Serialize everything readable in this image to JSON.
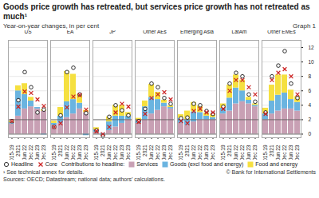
{
  "chart_data": {
    "type": "bar",
    "stacked": true,
    "title": "Goods price growth has retreated, but services price growth has not retreated as much¹",
    "subtitle": "Year-on-year changes, in per cent",
    "graph_label": "Graph 1",
    "footnote": "¹ See technical annex for details.",
    "source": "Sources: OECD; Datastream; national data; authors’ calculations.",
    "copyright": "© Bank for International Settlements",
    "legend_note": "Contributions to headline:",
    "legend": "bottom",
    "grid": true,
    "ylim": [
      -0.5,
      13.0
    ],
    "yticks": [
      0,
      2,
      4,
      6,
      8,
      10,
      12
    ],
    "reference_lines": [
      2,
      0
    ],
    "groups": [
      {
        "name": "US",
        "categories": [
          "2015-19",
          "2021",
          "Jun 22",
          "Dec 22",
          "Jun 23",
          "Dec 23"
        ]
      },
      {
        "name": "EA",
        "categories": [
          "2015-19",
          "2021",
          "Jun 22",
          "Dec 22",
          "Jun 23",
          "Dec 23"
        ]
      },
      {
        "name": "JP",
        "categories": [
          "2015-19",
          "2021",
          "Jun 22",
          "Dec 22",
          "Jun 23",
          "Dec 23"
        ]
      },
      {
        "name": "Other AEs",
        "categories": [
          "2015-19",
          "2021",
          "Jun 22",
          "Dec 22",
          "Jun 23",
          "Dec 23"
        ]
      },
      {
        "name": "Emerging Asia",
        "categories": [
          "2015-19",
          "2021",
          "Jun 22",
          "Dec 22",
          "Jun 23",
          "Dec 23"
        ]
      },
      {
        "name": "LatAm",
        "categories": [
          "2015-19",
          "2021",
          "Jun 22",
          "Dec 22",
          "Jun 23",
          "Dec 23"
        ]
      },
      {
        "name": "Other EMEs",
        "categories": [
          "2015-19",
          "2021",
          "Jun 22",
          "Dec 22",
          "Jun 23",
          "Dec 23"
        ]
      }
    ],
    "series": [
      {
        "name": "Headline",
        "type": "scatter",
        "marker": "circle",
        "color": "#000000",
        "values": [
          1.8,
          4.7,
          8.6,
          6.5,
          3.0,
          3.4,
          1.0,
          2.6,
          8.6,
          9.2,
          5.5,
          2.9,
          0.5,
          -0.2,
          2.4,
          4.0,
          3.3,
          2.6,
          1.8,
          3.5,
          7.0,
          6.5,
          5.0,
          4.2,
          2.2,
          2.3,
          4.2,
          4.0,
          3.2,
          2.8,
          3.8,
          7.0,
          8.5,
          8.0,
          5.5,
          4.5,
          3.0,
          8.0,
          9.5,
          11.5,
          7.0,
          5.0
        ]
      },
      {
        "name": "Core",
        "type": "scatter",
        "marker": "x",
        "color": "#cc2222",
        "values": [
          1.8,
          3.8,
          5.9,
          5.7,
          4.8,
          3.9,
          1.0,
          1.5,
          3.7,
          5.2,
          5.4,
          3.4,
          0.4,
          0.0,
          1.0,
          3.0,
          4.2,
          3.8,
          1.7,
          2.8,
          5.0,
          5.5,
          5.8,
          4.8,
          1.8,
          1.5,
          3.2,
          3.5,
          3.0,
          3.0,
          3.5,
          6.0,
          7.5,
          7.5,
          6.5,
          5.5,
          2.8,
          7.5,
          8.5,
          9.0,
          8.0,
          5.5
        ]
      },
      {
        "name": "Services",
        "type": "bar",
        "color": "#c8a0b4",
        "values": [
          1.4,
          2.5,
          3.5,
          3.8,
          3.5,
          3.2,
          1.2,
          1.5,
          2.3,
          2.8,
          3.5,
          3.0,
          0.3,
          0.0,
          0.5,
          1.0,
          1.5,
          2.0,
          1.5,
          2.0,
          2.8,
          3.3,
          3.8,
          3.5,
          1.5,
          1.2,
          1.7,
          2.0,
          2.0,
          2.0,
          2.8,
          3.2,
          4.2,
          4.5,
          4.2,
          3.8,
          2.0,
          2.8,
          3.2,
          3.5,
          3.5,
          3.2
        ]
      },
      {
        "name": "Goods (excl food and energy)",
        "type": "bar",
        "color": "#6ab4e0",
        "values": [
          0.2,
          3.5,
          2.0,
          0.8,
          0.2,
          -0.1,
          0.3,
          1.0,
          2.2,
          2.0,
          0.8,
          -0.2,
          0.3,
          0.1,
          1.2,
          1.5,
          1.0,
          0.5,
          0.4,
          1.8,
          2.3,
          1.5,
          0.5,
          0.2,
          0.7,
          0.8,
          1.4,
          1.0,
          0.5,
          0.3,
          0.8,
          1.8,
          2.2,
          1.5,
          0.5,
          0.2,
          0.8,
          1.8,
          2.2,
          2.2,
          1.3,
          1.2
        ]
      },
      {
        "name": "Food and energy",
        "type": "bar",
        "color": "#f5e040",
        "values": [
          0.2,
          0.7,
          1.5,
          0.5,
          0.0,
          0.2,
          0.3,
          1.2,
          4.2,
          3.5,
          1.2,
          0.3,
          0.3,
          0.0,
          0.7,
          1.5,
          1.5,
          0.5,
          0.3,
          0.8,
          1.8,
          1.0,
          0.4,
          0.2,
          0.5,
          1.2,
          1.3,
          0.9,
          0.4,
          0.4,
          0.6,
          1.8,
          1.8,
          1.5,
          0.4,
          0.2,
          0.8,
          2.2,
          2.8,
          2.5,
          1.3,
          0.8
        ]
      }
    ]
  }
}
